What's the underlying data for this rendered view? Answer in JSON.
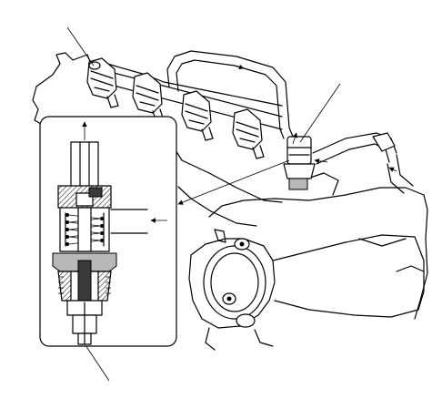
{
  "figure": {
    "kind": "fuel injector and fuel pressure regulator service illustration",
    "callout_text": []
  },
  "colors": {
    "line": "#000000",
    "background": "#ffffff",
    "metal_shade": "#b8b8b8",
    "dark_shade": "#3a3a3a"
  }
}
